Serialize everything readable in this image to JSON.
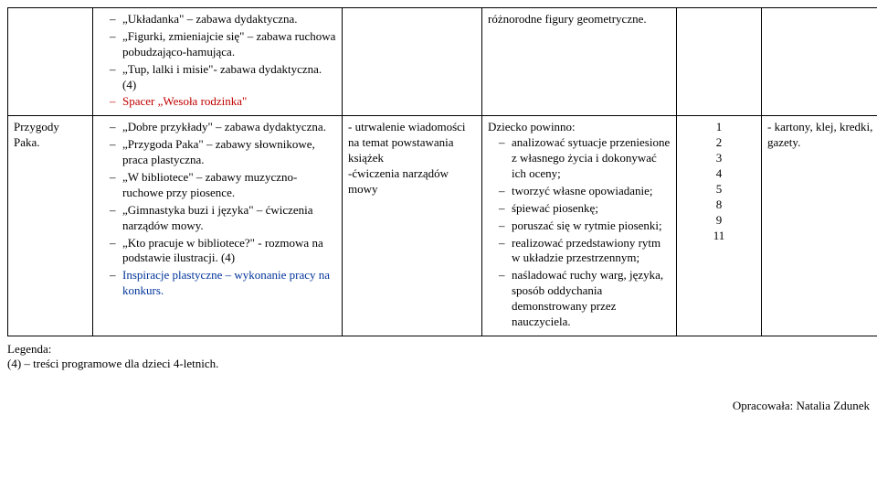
{
  "table": {
    "row1": {
      "col1": {
        "items": [
          {
            "text": "„Układanka\" – zabawa dydaktyczna.",
            "cls": ""
          },
          {
            "text": "„Figurki, zmieniajcie się\" – zabawa ruchowa pobudzająco-hamująca.",
            "cls": ""
          },
          {
            "text": "„Tup, lalki i misie\"- zabawa dydaktyczna. (4)",
            "cls": ""
          },
          {
            "text": "Spacer „Wesoła rodzinka\"",
            "cls": "red"
          }
        ]
      },
      "col3": "różnorodne figury geometryczne."
    },
    "row2": {
      "col0": "Przygody Paka.",
      "col1": {
        "items": [
          {
            "text": "„Dobre przykłady\" – zabawa dydaktyczna.",
            "cls": ""
          },
          {
            "text": "„Przygoda Paka\" – zabawy słownikowe, praca plastyczna.",
            "cls": ""
          },
          {
            "text": "„W bibliotece\" – zabawy muzyczno-ruchowe przy piosence.",
            "cls": ""
          },
          {
            "text": "„Gimnastyka buzi i języka\" – ćwiczenia narządów mowy.",
            "cls": ""
          },
          {
            "text": "„Kto pracuje w bibliotece?\" - rozmowa na podstawie ilustracji. (4)",
            "cls": ""
          },
          {
            "text": "Inspiracje plastyczne – wykonanie pracy na konkurs.",
            "cls": "blue"
          }
        ]
      },
      "col2": "- utrwalenie wiadomości na temat powstawania książek\n-ćwiczenia narządów mowy",
      "col3": {
        "lead": "Dziecko powinno:",
        "items": [
          "analizować sytuacje przeniesione z własnego życia i dokonywać ich oceny;",
          "tworzyć własne opowiadanie;",
          "śpiewać piosenkę;",
          "poruszać się w rytmie piosenki;",
          "realizować przedstawiony rytm w układzie przestrzennym;",
          "naśladować ruchy warg, języka, sposób oddychania demonstrowany przez nauczyciela."
        ]
      },
      "col4": [
        "1",
        "2",
        "3",
        "4",
        "5",
        "8",
        "9",
        "11"
      ],
      "col5": "- kartony, klej, kredki, gazety."
    }
  },
  "legend": {
    "title": "Legenda:",
    "line": "(4) – treści programowe dla dzieci 4-letnich."
  },
  "author": "Opracowała: Natalia Zdunek"
}
